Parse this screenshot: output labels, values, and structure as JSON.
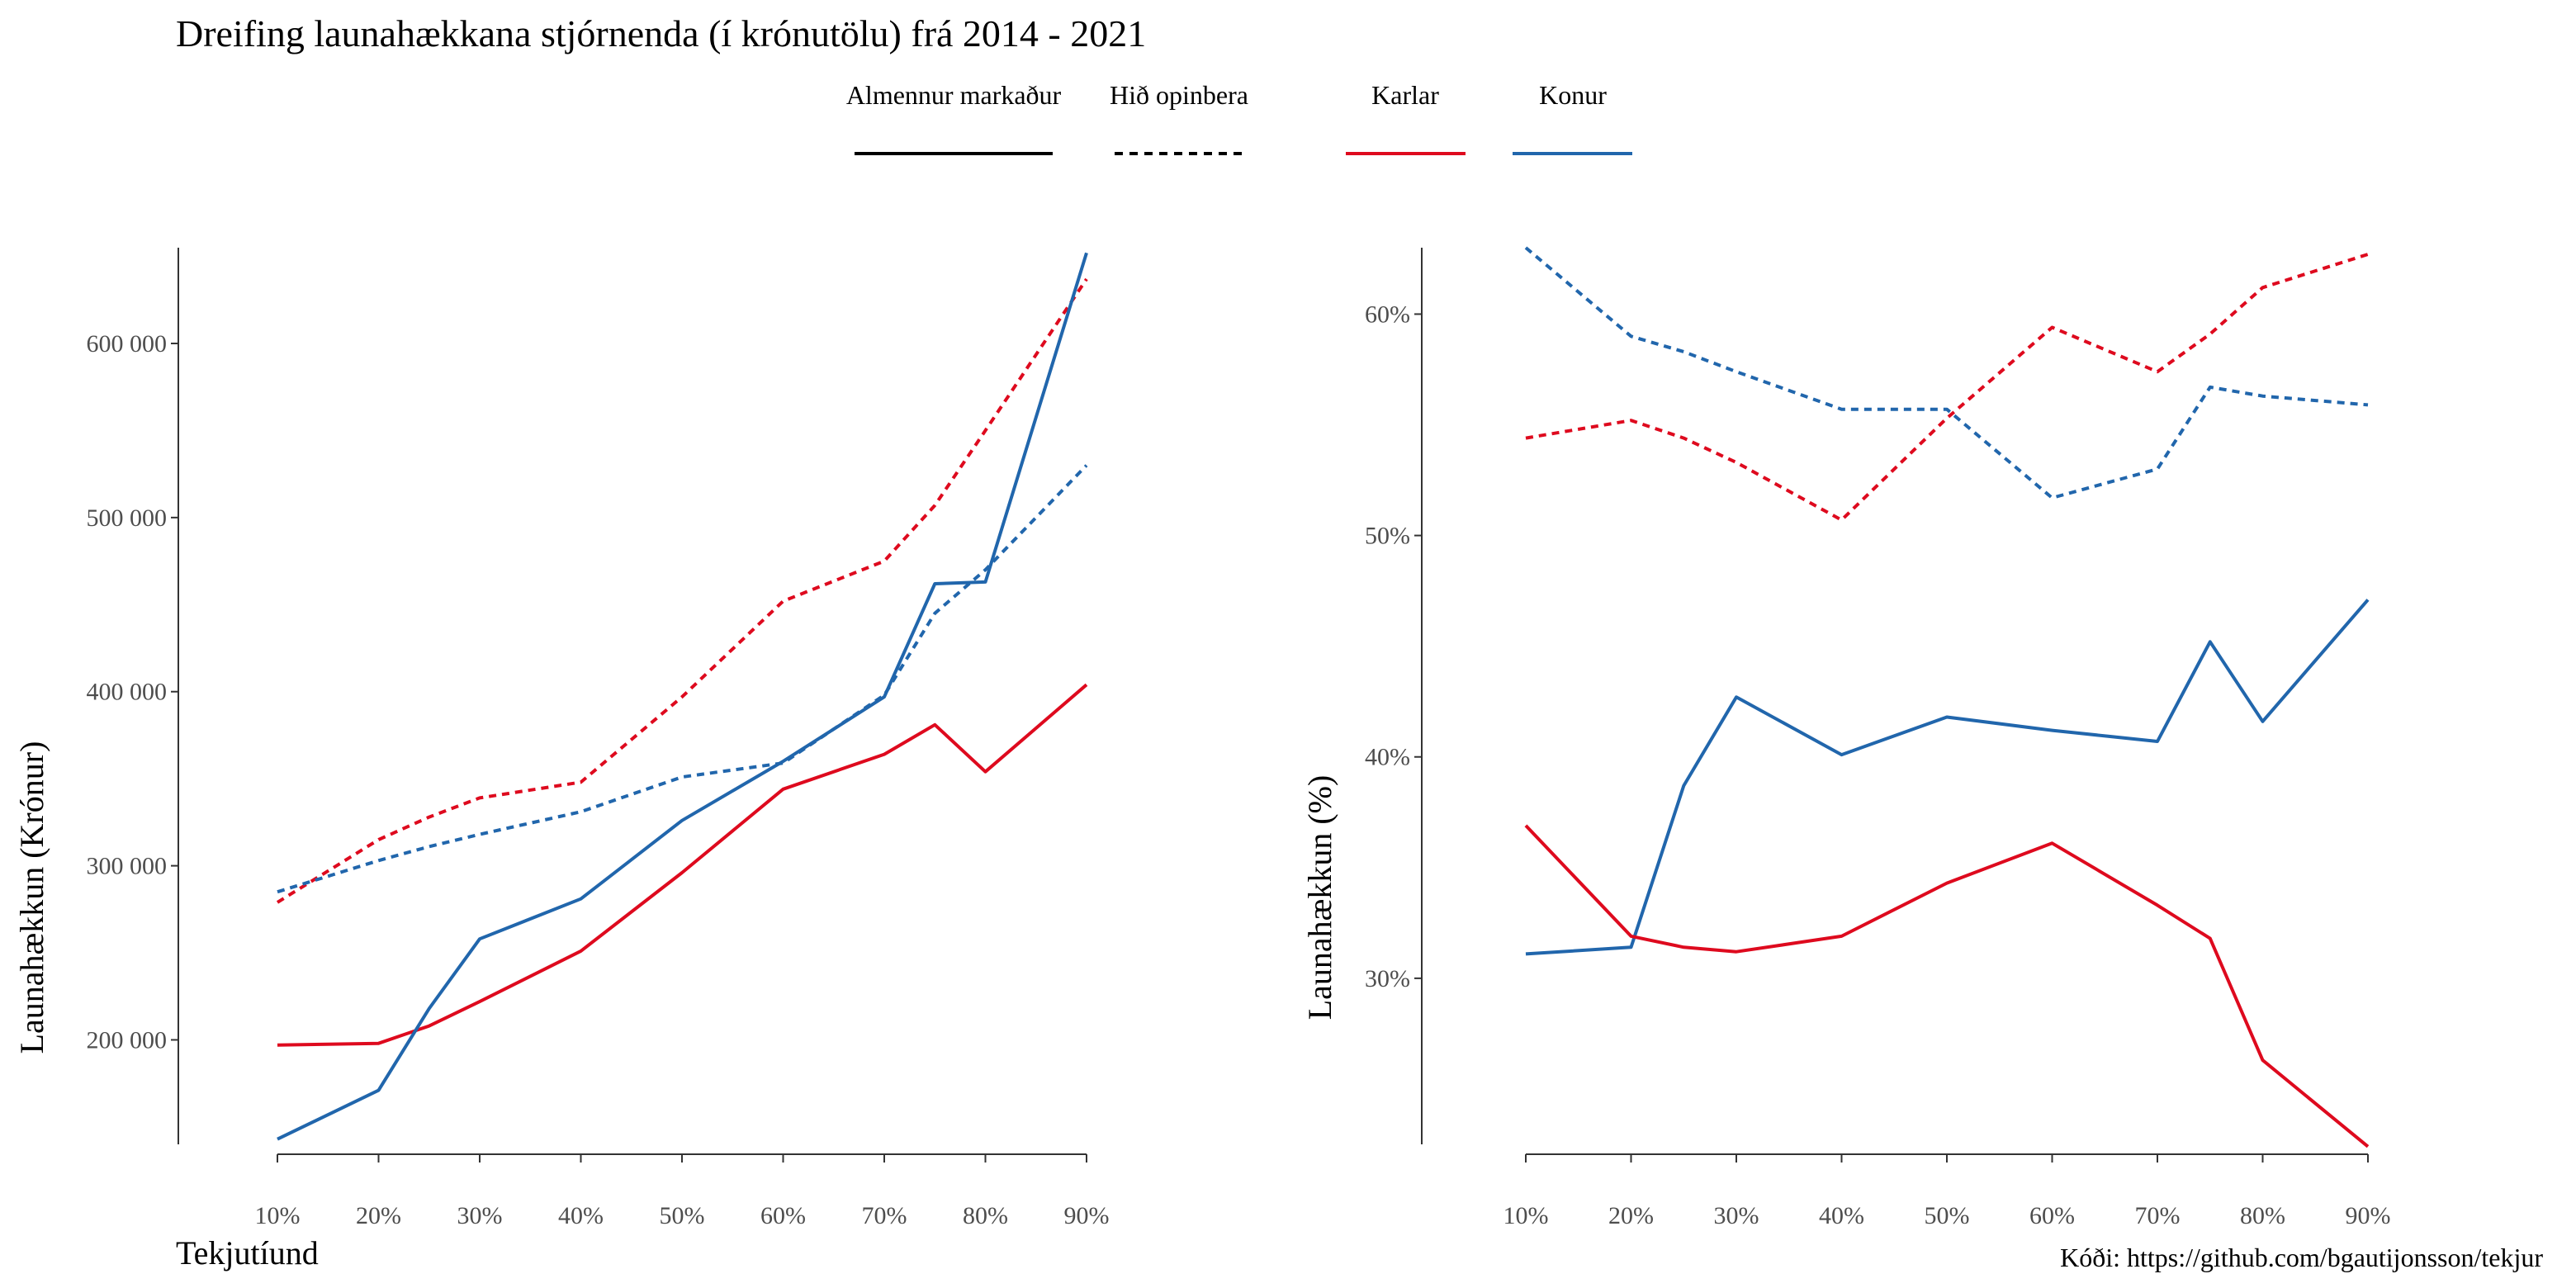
{
  "title": "Dreifing launahækkana stjórnenda (í krónutölu) frá 2014 - 2021",
  "caption": "Kóði: https://github.com/bgautijonsson/tekjur",
  "legend": {
    "linetype": [
      {
        "label": "Almennur markaður",
        "dash": "solid"
      },
      {
        "label": "Hið opinbera",
        "dash": "dotted"
      }
    ],
    "color": [
      {
        "label": "Karlar",
        "color": "#de0a1e"
      },
      {
        "label": "Konur",
        "color": "#2166ac"
      }
    ]
  },
  "colors": {
    "karlar": "#de0a1e",
    "konur": "#2166ac",
    "axis": "#333333",
    "tick_text": "#4d4d4d"
  },
  "chart_data": [
    {
      "type": "line",
      "xlabel": "Tekjutíund",
      "ylabel": "Launahækkun (Krónur)",
      "x": [
        10,
        20,
        25,
        30,
        40,
        50,
        60,
        70,
        75,
        80,
        90
      ],
      "x_ticks": [
        10,
        20,
        30,
        40,
        50,
        60,
        70,
        80,
        90
      ],
      "x_tick_labels": [
        "10%",
        "20%",
        "30%",
        "40%",
        "50%",
        "60%",
        "70%",
        "80%",
        "90%"
      ],
      "xlim": [
        10,
        90
      ],
      "ylim": [
        140000,
        655000
      ],
      "y_ticks": [
        200000,
        300000,
        400000,
        500000,
        600000
      ],
      "y_tick_labels": [
        "200 000",
        "300 000",
        "400 000",
        "500 000",
        "600 000"
      ],
      "series": [
        {
          "key": "public-karlar",
          "color_group": "Karlar",
          "sector": "Hið opinbera",
          "dash": "dotted",
          "values": [
            279000,
            315000,
            328000,
            339000,
            348000,
            397000,
            452000,
            475000,
            507000,
            550000,
            637000
          ]
        },
        {
          "key": "public-konur",
          "color_group": "Konur",
          "sector": "Hið opinbera",
          "dash": "dotted",
          "values": [
            285000,
            303000,
            311000,
            318000,
            331000,
            351000,
            359000,
            398000,
            445000,
            470000,
            530000
          ]
        },
        {
          "key": "market-karlar",
          "color_group": "Karlar",
          "sector": "Almennur markaður",
          "dash": "solid",
          "values": [
            197000,
            198000,
            208000,
            222000,
            251000,
            296000,
            344000,
            364000,
            381000,
            354000,
            404000
          ]
        },
        {
          "key": "market-konur",
          "color_group": "Konur",
          "sector": "Almennur markaður",
          "dash": "solid",
          "values": [
            143000,
            171000,
            218000,
            258000,
            281000,
            326000,
            360000,
            397000,
            462000,
            463000,
            652000
          ]
        }
      ]
    },
    {
      "type": "line",
      "ylabel": "Launahækkun (%)",
      "x": [
        10,
        20,
        25,
        30,
        40,
        50,
        60,
        70,
        75,
        80,
        90
      ],
      "x_ticks": [
        10,
        20,
        30,
        40,
        50,
        60,
        70,
        80,
        90
      ],
      "x_tick_labels": [
        "10%",
        "20%",
        "30%",
        "40%",
        "50%",
        "60%",
        "70%",
        "80%",
        "90%"
      ],
      "xlim": [
        10,
        90
      ],
      "ylim": [
        0.225,
        0.63
      ],
      "y_ticks": [
        0.3,
        0.4,
        0.5,
        0.6
      ],
      "y_tick_labels": [
        "30%",
        "40%",
        "50%",
        "60%"
      ],
      "series": [
        {
          "key": "public-konur",
          "color_group": "Konur",
          "sector": "Hið opinbera",
          "dash": "dotted",
          "values": [
            0.63,
            0.59,
            0.583,
            0.574,
            0.557,
            0.557,
            0.517,
            0.53,
            0.567,
            0.563,
            0.559
          ]
        },
        {
          "key": "public-karlar",
          "color_group": "Karlar",
          "sector": "Hið opinbera",
          "dash": "dotted",
          "values": [
            0.544,
            0.552,
            0.544,
            0.533,
            0.507,
            0.553,
            0.594,
            0.574,
            0.591,
            0.612,
            0.627
          ]
        },
        {
          "key": "market-konur",
          "color_group": "Konur",
          "sector": "Almennur markaður",
          "dash": "solid",
          "values": [
            0.311,
            0.314,
            0.387,
            0.427,
            0.401,
            0.418,
            0.412,
            0.407,
            0.452,
            0.416,
            0.471
          ]
        },
        {
          "key": "market-karlar",
          "color_group": "Karlar",
          "sector": "Almennur markaður",
          "dash": "solid",
          "values": [
            0.369,
            0.319,
            0.314,
            0.312,
            0.319,
            0.343,
            0.361,
            0.333,
            0.318,
            0.263,
            0.224
          ]
        }
      ]
    }
  ]
}
